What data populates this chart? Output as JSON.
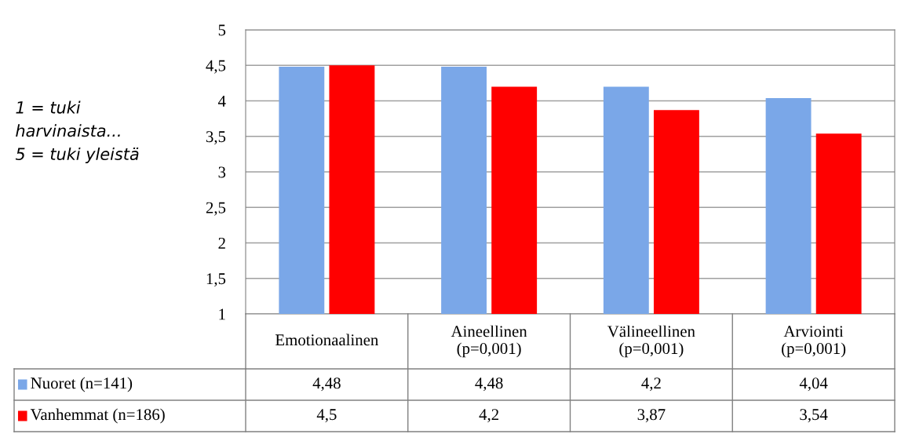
{
  "chart_data": {
    "type": "bar",
    "ylabel": "1 = tuki\nharvinaista...\n5 = tuki yleistä",
    "categories": [
      "Emotionaalinen",
      "Aineellinen\n(p=0,001)",
      "Välineellinen\n(p=0,001)",
      "Arviointi\n(p=0,001)"
    ],
    "series": [
      {
        "name": "Nuoret (n=141)",
        "color": "#7aa7e8",
        "values": [
          4.48,
          4.48,
          4.2,
          4.04
        ],
        "value_labels": [
          "4,48",
          "4,48",
          "4,2",
          "4,04"
        ]
      },
      {
        "name": "Vanhemmat (n=186)",
        "color": "#ff0000",
        "values": [
          4.5,
          4.2,
          3.87,
          3.54
        ],
        "value_labels": [
          "4,5",
          "4,2",
          "3,87",
          "3,54"
        ]
      }
    ],
    "ylim": [
      1,
      5
    ],
    "yticks": [
      1,
      {
        "value": 1.5,
        "label": "1,5"
      },
      2,
      {
        "value": 2.5,
        "label": "2,5"
      },
      3,
      {
        "value": 3.5,
        "label": "3,5"
      },
      4,
      {
        "value": 4.5,
        "label": "4,5"
      },
      5
    ],
    "grid": "y",
    "legend": "bottom"
  }
}
